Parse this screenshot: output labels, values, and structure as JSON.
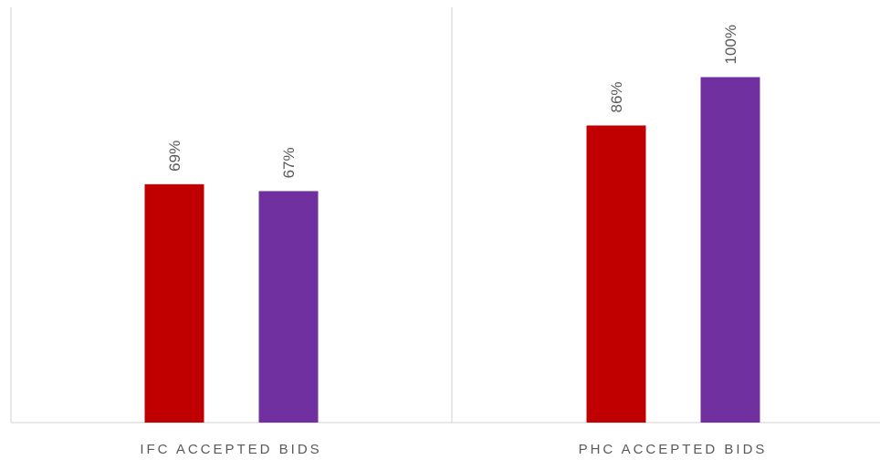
{
  "chart_data": {
    "type": "bar",
    "categories": [
      "IFC ACCEPTED BIDS",
      "PHC ACCEPTED BIDS"
    ],
    "series": [
      {
        "color": "#c00000",
        "values": [
          69,
          86
        ],
        "labels": [
          "69%",
          "86%"
        ]
      },
      {
        "color": "#7030a0",
        "values": [
          67,
          100
        ],
        "labels": [
          "67%",
          "100%"
        ]
      }
    ],
    "ylim": [
      0,
      120
    ],
    "grid": false,
    "legend": "none",
    "data_label_orientation": "vertical",
    "colors": {
      "axis": "#d9d9d9",
      "text": "#595959"
    }
  }
}
